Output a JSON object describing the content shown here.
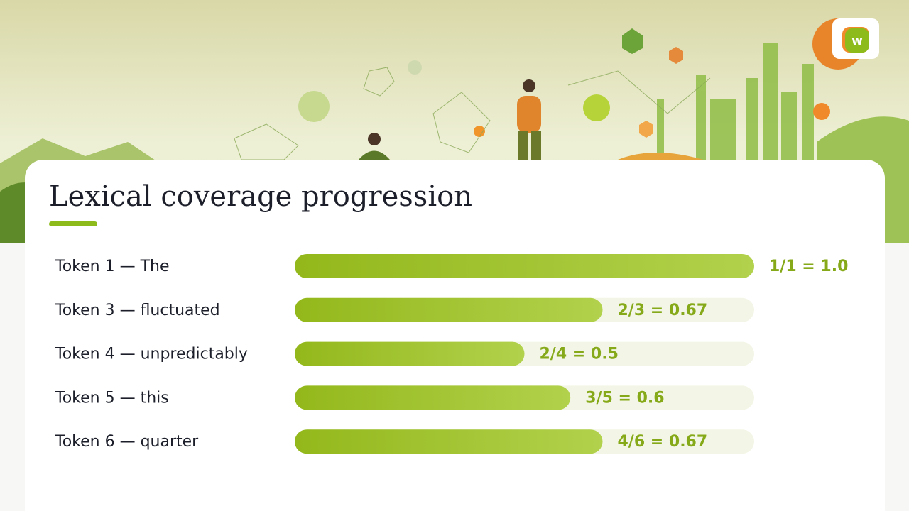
{
  "brand": {
    "logo": "w"
  },
  "chart_data": {
    "type": "bar",
    "orientation": "horizontal",
    "title": "Lexical coverage progression",
    "categories": [
      "Token 1 — The",
      "Token 3 — fluctuated",
      "Token 4 — unpredictably",
      "Token 5 — this",
      "Token 6 — quarter"
    ],
    "values": [
      1.0,
      0.67,
      0.5,
      0.6,
      0.67
    ],
    "value_labels": [
      "1/1 = 1.0",
      "2/3 = 0.67",
      "2/4 = 0.5",
      "3/5 = 0.6",
      "4/6 = 0.67"
    ],
    "xlim": [
      0,
      1
    ],
    "color": "#9cbf24",
    "track_color": "#f3f6e6"
  }
}
